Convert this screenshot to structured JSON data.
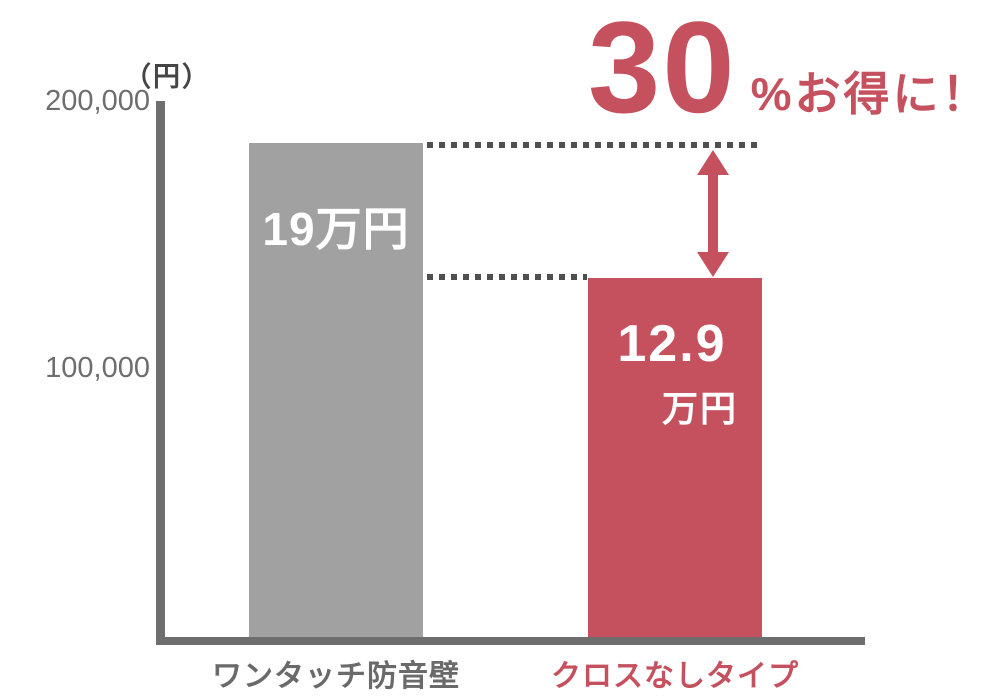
{
  "chart_data": {
    "type": "bar",
    "title": "30%お得に！",
    "ylabel": "（円）",
    "categories": [
      "ワンタッチ防音壁",
      "クロスなしタイプ"
    ],
    "values": [
      190000,
      129000
    ],
    "bar_value_labels": [
      "19万円",
      "12.9万円"
    ],
    "ytick_labels": [
      "200,000",
      "100,000"
    ],
    "ylim": [
      0,
      200000
    ],
    "grid": false,
    "legend_position": "none",
    "bar_colors": [
      "#a1a1a1",
      "#c5515f"
    ],
    "axis_color": "#6e6e6e",
    "dotted_guide_color": "#4f4f4f",
    "annotation": {
      "number": "30",
      "suffix": "%お得に！",
      "meaning": "30% savings between 190,000 and 129,000 yen",
      "color": "#c5515f"
    }
  },
  "labels": {
    "y_unit": "（円）",
    "tick_200k": "200,000",
    "tick_100k": "100,000",
    "bar1_value": "19万円",
    "bar2_value_line1": "12.9",
    "bar2_value_line2": "万円",
    "bar1_name": "ワンタッチ防音壁",
    "bar2_name": "クロスなしタイプ",
    "annotation_number": "30",
    "annotation_suffix": "%お得に！"
  },
  "colors": {
    "accent_red": "#c5515f",
    "bar_gray": "#a1a1a1",
    "axis_gray": "#6e6e6e",
    "text_gray": "#6a6a6a",
    "white": "#ffffff"
  }
}
